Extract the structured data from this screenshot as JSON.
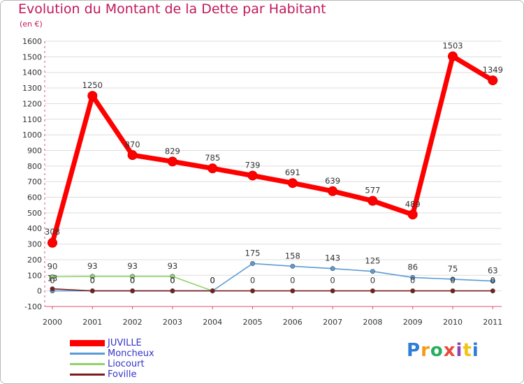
{
  "chart_data": {
    "type": "line",
    "title": "Evolution du Montant de la Dette par Habitant",
    "subtitle": "(en €)",
    "xlabel": "",
    "ylabel": "",
    "ylim": [
      -100,
      1600
    ],
    "yticks": [
      -100,
      0,
      100,
      200,
      300,
      400,
      500,
      600,
      700,
      800,
      900,
      1000,
      1100,
      1200,
      1300,
      1400,
      1500,
      1600
    ],
    "categories": [
      "2000",
      "2001",
      "2002",
      "2003",
      "2004",
      "2005",
      "2006",
      "2007",
      "2008",
      "2009",
      "2010",
      "2011"
    ],
    "series": [
      {
        "name": "JUVILLE",
        "color": "#ff0000",
        "values": [
          308,
          1250,
          870,
          829,
          785,
          739,
          691,
          639,
          577,
          489,
          1503,
          1349
        ]
      },
      {
        "name": "Moncheux",
        "color": "#5b9bd5",
        "values": [
          0,
          0,
          0,
          0,
          0,
          175,
          158,
          143,
          125,
          86,
          75,
          63
        ]
      },
      {
        "name": "Liocourt",
        "color": "#8fd46b",
        "values": [
          90,
          93,
          93,
          93,
          0,
          null,
          null,
          null,
          null,
          null,
          null,
          null
        ]
      },
      {
        "name": "Foville",
        "color": "#7b1c1c",
        "values": [
          13,
          0,
          0,
          0,
          0,
          0,
          0,
          0,
          0,
          0,
          0,
          0
        ]
      }
    ],
    "legend": "bottom-left"
  },
  "brand": {
    "logo_text": "Proxiti"
  }
}
